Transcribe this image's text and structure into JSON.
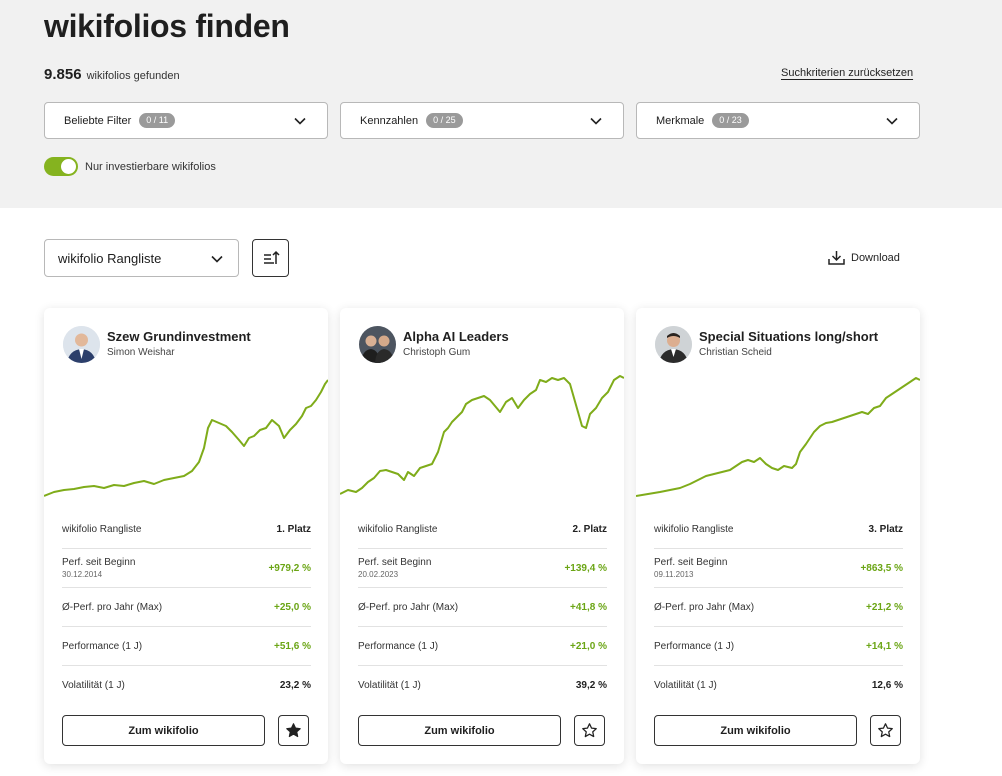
{
  "page": {
    "title": "wikifolios finden"
  },
  "results": {
    "count": "9.856",
    "label": "wikifolios gefunden",
    "reset": "Suchkriterien zurücksetzen"
  },
  "filters": [
    {
      "label": "Beliebte Filter",
      "badge": "0 / 11"
    },
    {
      "label": "Kennzahlen",
      "badge": "0 / 25"
    },
    {
      "label": "Merkmale",
      "badge": "0 / 23"
    }
  ],
  "toggle": {
    "label": "Nur investierbare wikifolios",
    "on": true
  },
  "sort": {
    "selected": "wikifolio Rangliste"
  },
  "download": {
    "label": "Download"
  },
  "colors": {
    "accent": "#85b31f",
    "positive": "#6ba515"
  },
  "cards": [
    {
      "name": "Szew Grundinvestment",
      "author": "Simon Weishar",
      "rank_label": "wikifolio Rangliste",
      "rank": "1. Platz",
      "perf_label": "Perf. seit Beginn",
      "perf_date": "30.12.2014",
      "perf": "+979,2 %",
      "avg_label": "Ø-Perf. pro Jahr (Max)",
      "avg": "+25,0 %",
      "perf1y_label": "Performance (1 J)",
      "perf1y": "+51,6 %",
      "vol_label": "Volatilität (1 J)",
      "vol": "23,2 %",
      "cta": "Zum wikifolio",
      "starred": true
    },
    {
      "name": "Alpha AI Leaders",
      "author": "Christoph Gum",
      "rank_label": "wikifolio Rangliste",
      "rank": "2. Platz",
      "perf_label": "Perf. seit Beginn",
      "perf_date": "20.02.2023",
      "perf": "+139,4 %",
      "avg_label": "Ø-Perf. pro Jahr (Max)",
      "avg": "+41,8 %",
      "perf1y_label": "Performance (1 J)",
      "perf1y": "+21,0 %",
      "vol_label": "Volatilität (1 J)",
      "vol": "39,2 %",
      "cta": "Zum wikifolio",
      "starred": false
    },
    {
      "name": "Special Situations long/short",
      "author": "Christian Scheid",
      "rank_label": "wikifolio Rangliste",
      "rank": "3. Platz",
      "perf_label": "Perf. seit Beginn",
      "perf_date": "09.11.2013",
      "perf": "+863,5 %",
      "avg_label": "Ø-Perf. pro Jahr (Max)",
      "avg": "+21,2 %",
      "perf1y_label": "Performance (1 J)",
      "perf1y": "+14,1 %",
      "vol_label": "Volatilität (1 J)",
      "vol": "12,6 %",
      "cta": "Zum wikifolio",
      "starred": false
    }
  ]
}
